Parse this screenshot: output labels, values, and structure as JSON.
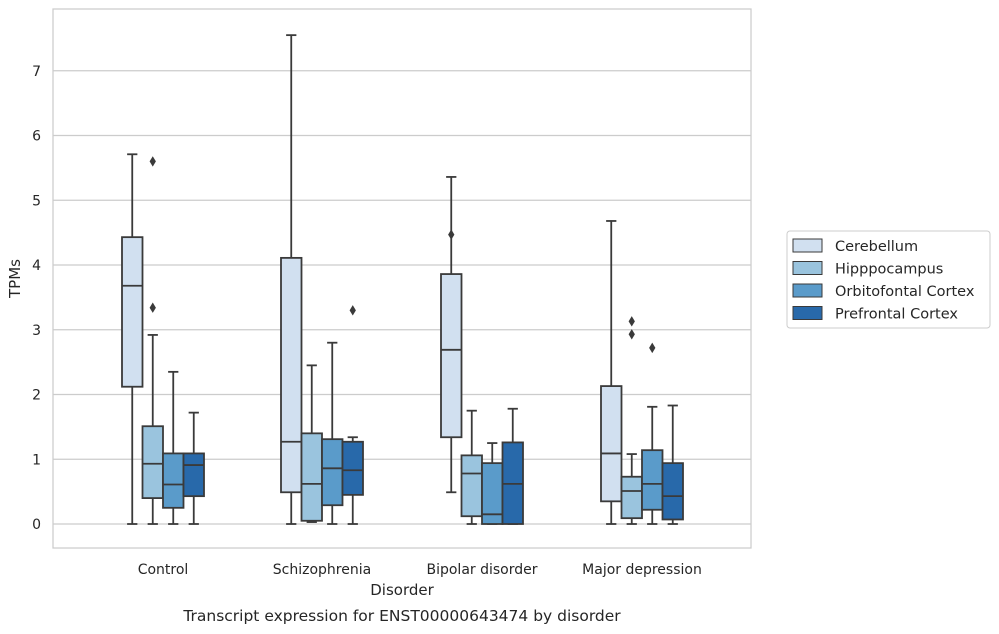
{
  "chart_data": {
    "type": "box",
    "caption": "Transcript expression for ENST00000643474 by disorder",
    "xlabel": "Disorder",
    "ylabel": "TPMs",
    "ylim": [
      -0.37,
      7.95
    ],
    "yticks": [
      0,
      1,
      2,
      3,
      4,
      5,
      6,
      7
    ],
    "grid": "horizontal",
    "legend_position": "right",
    "categories": [
      "Control",
      "Schizophrenia",
      "Bipolar disorder",
      "Major depression"
    ],
    "series": [
      {
        "name": "Cerebellum",
        "color": "#d1e0f0",
        "boxes": [
          {
            "whisker_low": 0.0,
            "q1": 2.12,
            "median": 3.68,
            "q3": 4.43,
            "whisker_high": 5.71,
            "outliers": []
          },
          {
            "whisker_low": 0.0,
            "q1": 0.49,
            "median": 1.27,
            "q3": 4.11,
            "whisker_high": 7.55,
            "outliers": []
          },
          {
            "whisker_low": 0.49,
            "q1": 1.34,
            "median": 2.69,
            "q3": 3.86,
            "whisker_high": 5.36,
            "outliers": [
              4.47
            ]
          },
          {
            "whisker_low": 0.0,
            "q1": 0.35,
            "median": 1.09,
            "q3": 2.13,
            "whisker_high": 4.68,
            "outliers": []
          }
        ]
      },
      {
        "name": "Hipppocampus",
        "color": "#9ac4de",
        "boxes": [
          {
            "whisker_low": 0.0,
            "q1": 0.4,
            "median": 0.93,
            "q3": 1.51,
            "whisker_high": 2.92,
            "outliers": [
              3.34,
              5.6
            ]
          },
          {
            "whisker_low": 0.03,
            "q1": 0.05,
            "median": 0.62,
            "q3": 1.4,
            "whisker_high": 2.45,
            "outliers": []
          },
          {
            "whisker_low": 0.0,
            "q1": 0.12,
            "median": 0.78,
            "q3": 1.06,
            "whisker_high": 1.75,
            "outliers": []
          },
          {
            "whisker_low": 0.0,
            "q1": 0.09,
            "median": 0.51,
            "q3": 0.73,
            "whisker_high": 1.08,
            "outliers": [
              2.93,
              3.13
            ]
          }
        ]
      },
      {
        "name": "Orbitofontal Cortex",
        "color": "#5a9bca",
        "boxes": [
          {
            "whisker_low": 0.0,
            "q1": 0.25,
            "median": 0.61,
            "q3": 1.09,
            "whisker_high": 2.35,
            "outliers": []
          },
          {
            "whisker_low": 0.0,
            "q1": 0.29,
            "median": 0.86,
            "q3": 1.31,
            "whisker_high": 2.8,
            "outliers": []
          },
          {
            "whisker_low": 0.0,
            "q1": 0.0,
            "median": 0.15,
            "q3": 0.94,
            "whisker_high": 1.25,
            "outliers": []
          },
          {
            "whisker_low": 0.0,
            "q1": 0.22,
            "median": 0.62,
            "q3": 1.14,
            "whisker_high": 1.81,
            "outliers": [
              2.72
            ]
          }
        ]
      },
      {
        "name": "Prefrontal Cortex",
        "color": "#2869aa",
        "boxes": [
          {
            "whisker_low": 0.0,
            "q1": 0.43,
            "median": 0.91,
            "q3": 1.09,
            "whisker_high": 1.72,
            "outliers": []
          },
          {
            "whisker_low": 0.0,
            "q1": 0.45,
            "median": 0.83,
            "q3": 1.27,
            "whisker_high": 1.34,
            "outliers": [
              3.3
            ]
          },
          {
            "whisker_low": 0.0,
            "q1": 0.0,
            "median": 0.62,
            "q3": 1.26,
            "whisker_high": 1.78,
            "outliers": []
          },
          {
            "whisker_low": 0.0,
            "q1": 0.07,
            "median": 0.43,
            "q3": 0.94,
            "whisker_high": 1.83,
            "outliers": []
          }
        ]
      }
    ]
  }
}
